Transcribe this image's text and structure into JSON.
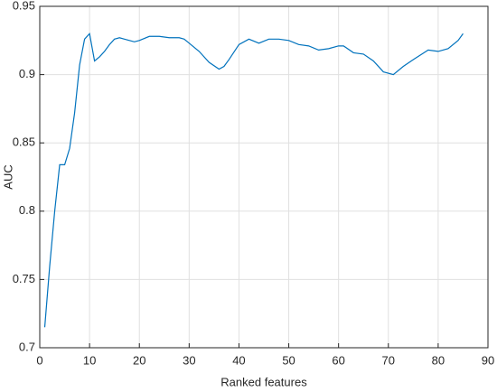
{
  "chart_data": {
    "type": "line",
    "x_label": "Ranked features",
    "y_label": "AUC",
    "x": [
      1,
      2,
      3,
      4,
      5,
      6,
      7,
      8,
      9,
      10,
      11,
      12,
      13,
      14,
      15,
      16,
      17,
      18,
      19,
      20,
      22,
      24,
      26,
      28,
      29,
      30,
      32,
      34,
      36,
      37,
      38,
      40,
      42,
      44,
      46,
      48,
      50,
      52,
      54,
      56,
      58,
      60,
      61,
      63,
      65,
      67,
      69,
      71,
      73,
      75,
      78,
      80,
      82,
      84,
      85
    ],
    "series": [
      {
        "color": "#0072bd",
        "values": [
          0.715,
          0.76,
          0.8,
          0.834,
          0.834,
          0.846,
          0.872,
          0.907,
          0.926,
          0.93,
          0.91,
          0.913,
          0.917,
          0.922,
          0.926,
          0.927,
          0.926,
          0.925,
          0.924,
          0.925,
          0.928,
          0.928,
          0.927,
          0.927,
          0.926,
          0.923,
          0.917,
          0.909,
          0.904,
          0.906,
          0.911,
          0.922,
          0.926,
          0.923,
          0.926,
          0.926,
          0.925,
          0.922,
          0.921,
          0.918,
          0.919,
          0.921,
          0.921,
          0.916,
          0.915,
          0.91,
          0.902,
          0.9,
          0.906,
          0.911,
          0.918,
          0.917,
          0.919,
          0.925,
          0.93
        ]
      }
    ],
    "xlim": [
      0,
      90
    ],
    "xticks": [
      0,
      10,
      20,
      30,
      40,
      50,
      60,
      70,
      80,
      90
    ],
    "ylim": [
      0.7,
      0.95
    ],
    "yticks": [
      0.7,
      0.75,
      0.8,
      0.85,
      0.9,
      0.95
    ],
    "grid": true
  }
}
